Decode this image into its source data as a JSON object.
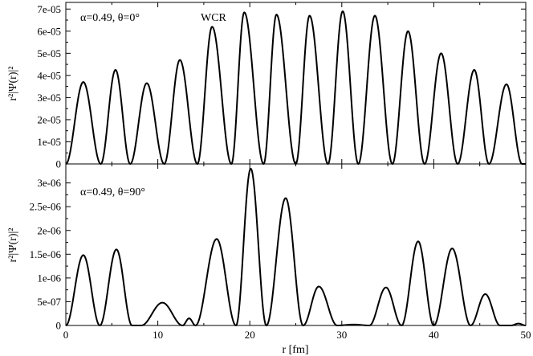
{
  "chart_data": [
    {
      "type": "line",
      "panel": "top",
      "xlabel": "",
      "ylabel": "r²|Ψ(r)|²",
      "xlim": [
        0,
        50
      ],
      "ylim": [
        0,
        7.3e-05
      ],
      "x_ticks": [
        0,
        10,
        20,
        30,
        40,
        50
      ],
      "x_ticklabels": [],
      "y_ticks": [
        0,
        1e-05,
        2e-05,
        3e-05,
        4e-05,
        5e-05,
        6e-05,
        7e-05
      ],
      "y_ticklabels": [
        "0",
        "1e-05",
        "2e-05",
        "3e-05",
        "4e-05",
        "5e-05",
        "6e-05",
        "7e-05"
      ],
      "annotations": {
        "params": "α=0.49, θ=0°",
        "tag": "WCR"
      },
      "zeros": [
        0,
        3.8,
        7.0,
        10.7,
        14.3,
        18.0,
        21.5,
        25.0,
        28.5,
        31.8,
        35.5,
        39.0,
        42.6,
        46.0,
        49.6
      ],
      "peaks": [
        {
          "x": 1.9,
          "y": 3.7e-05
        },
        {
          "x": 5.4,
          "y": 4.25e-05
        },
        {
          "x": 8.8,
          "y": 3.65e-05
        },
        {
          "x": 12.4,
          "y": 4.7e-05
        },
        {
          "x": 15.9,
          "y": 6.2e-05
        },
        {
          "x": 19.4,
          "y": 6.85e-05
        },
        {
          "x": 22.9,
          "y": 6.75e-05
        },
        {
          "x": 26.5,
          "y": 6.7e-05
        },
        {
          "x": 30.1,
          "y": 6.9e-05
        },
        {
          "x": 33.6,
          "y": 6.7e-05
        },
        {
          "x": 37.2,
          "y": 6e-05
        },
        {
          "x": 40.8,
          "y": 5e-05
        },
        {
          "x": 44.4,
          "y": 4.25e-05
        },
        {
          "x": 47.9,
          "y": 3.6e-05
        }
      ],
      "series": [
        {
          "values": "piecewise bumps between zeros with given peak heights"
        }
      ]
    },
    {
      "type": "line",
      "panel": "bottom",
      "xlabel": "r [fm]",
      "ylabel": "r²|Ψ(r)|²",
      "xlim": [
        0,
        50
      ],
      "ylim": [
        0,
        3.4e-06
      ],
      "x_ticks": [
        0,
        10,
        20,
        30,
        40,
        50
      ],
      "x_ticklabels": [
        "0",
        "10",
        "20",
        "30",
        "40",
        "50"
      ],
      "y_ticks": [
        0,
        5e-07,
        1e-06,
        1.5e-06,
        2e-06,
        2.5e-06,
        3e-06
      ],
      "y_ticklabels": [
        "0",
        "5e-07",
        "1e-06",
        "1.5e-06",
        "2e-06",
        "2.5e-06",
        "3e-06"
      ],
      "annotations": {
        "params": "α=0.49, θ=90°"
      },
      "zeros": [
        0,
        3.7,
        7.2,
        8.2,
        12.7,
        14.1,
        18.5,
        21.8,
        25.8,
        29.5,
        33.0,
        36.5,
        40.0,
        44.0,
        47.2,
        48.4,
        50
      ],
      "peaks": [
        {
          "x": 1.9,
          "y": 1.48e-06
        },
        {
          "x": 5.5,
          "y": 1.6e-06
        },
        {
          "x": 7.7,
          "y": 0
        },
        {
          "x": 10.5,
          "y": 4.8e-07
        },
        {
          "x": 13.4,
          "y": 1.5e-07
        },
        {
          "x": 16.4,
          "y": 1.82e-06
        },
        {
          "x": 20.1,
          "y": 3.3e-06
        },
        {
          "x": 23.9,
          "y": 2.68e-06
        },
        {
          "x": 27.5,
          "y": 8.2e-07
        },
        {
          "x": 31.3,
          "y": 2e-08
        },
        {
          "x": 34.8,
          "y": 8e-07
        },
        {
          "x": 38.3,
          "y": 1.77e-06
        },
        {
          "x": 42.0,
          "y": 1.62e-06
        },
        {
          "x": 45.6,
          "y": 6.6e-07
        },
        {
          "x": 47.8,
          "y": 0
        },
        {
          "x": 49.2,
          "y": 4e-08
        }
      ],
      "series": [
        {
          "values": "piecewise bumps between zeros with given peak heights"
        }
      ]
    }
  ]
}
